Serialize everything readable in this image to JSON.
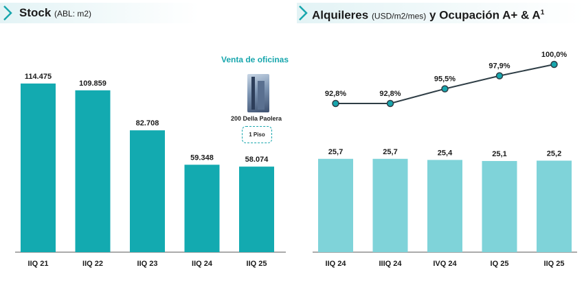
{
  "left_title": {
    "main": "Stock",
    "sub": "(ABL: m2)"
  },
  "right_title": {
    "main_a": "Alquileres",
    "sub": "(USD/m2/mes)",
    "main_b": "y Ocupación A+ & A",
    "sup": "1"
  },
  "annotation": {
    "title": "Venta de oficinas",
    "caption": "200 Della Paolera",
    "badge": "1 Piso"
  },
  "colors": {
    "accent": "#17a6ad",
    "bar_dark": "#13aab0",
    "bar_light": "#7fd3d9",
    "line": "#2e3d45",
    "marker": "#17a6ad"
  },
  "chart_data": [
    {
      "type": "bar",
      "title": "Stock",
      "categories": [
        "IIQ 21",
        "IIQ 22",
        "IIQ 23",
        "IIQ 24",
        "IIQ 25"
      ],
      "values": [
        114475,
        109859,
        82708,
        59348,
        58074
      ],
      "value_labels": [
        "114.475",
        "109.859",
        "82.708",
        "59.348",
        "58.074"
      ],
      "ylim": [
        0,
        120000
      ],
      "grid": false
    },
    {
      "type": "bar",
      "title": "Alquileres",
      "categories": [
        "IIQ 24",
        "IIIQ 24",
        "IVQ 24",
        "IQ 25",
        "IIQ 25"
      ],
      "series": [
        {
          "values": [
            25.7,
            25.7,
            25.4,
            25.1,
            25.2
          ],
          "value_labels": [
            "25,7",
            "25,7",
            "25,4",
            "25,1",
            "25,2"
          ]
        },
        {
          "type": "line",
          "values": [
            92.8,
            92.8,
            95.5,
            97.9,
            100.0
          ],
          "value_labels": [
            "92,8%",
            "92,8%",
            "95,5%",
            "97,9%",
            "100,0%"
          ]
        }
      ],
      "grid": false
    }
  ]
}
